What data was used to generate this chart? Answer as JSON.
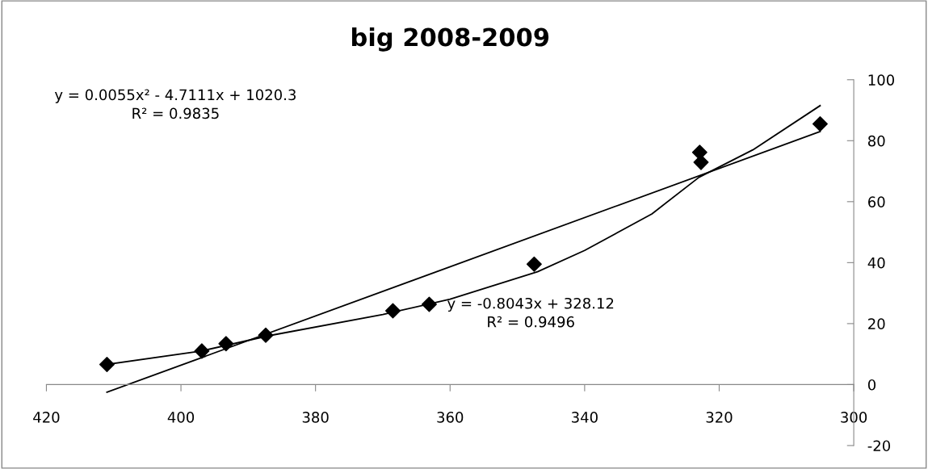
{
  "chart_data": {
    "type": "scatter",
    "title": "big 2008-2009",
    "marker": "diamond",
    "grid": false,
    "legend": false,
    "series": [
      {
        "color": "#000000",
        "x": [
          411.0,
          396.9,
          393.3,
          387.4,
          368.5,
          363.1,
          347.5,
          322.9,
          322.7,
          305.0
        ],
        "values": [
          6.6,
          11.0,
          13.4,
          16.2,
          24.2,
          26.3,
          39.5,
          76.2,
          72.9,
          85.5
        ]
      },
      {
        "type": "line",
        "color": "#000000",
        "marker": "none",
        "x": [
          411,
          305
        ],
        "values": [
          -2.5,
          83
        ]
      },
      {
        "type": "line",
        "color": "#000000",
        "marker": "none",
        "x": [
          411,
          397,
          387,
          370,
          360,
          347,
          340,
          330,
          323,
          315,
          305
        ],
        "values": [
          6.6,
          11,
          16,
          23,
          28,
          37,
          44,
          56,
          68,
          77,
          91.5
        ]
      }
    ],
    "xlim": [
      420,
      300
    ],
    "xticks": [
      420,
      400,
      380,
      360,
      340,
      320,
      300
    ],
    "ylim": [
      -20,
      100
    ],
    "yticks": [
      -20,
      0,
      20,
      40,
      60,
      80,
      100
    ],
    "annotations": [
      "y = 0.0055x² - 4.7111x + 1020.3\nR² = 0.9835",
      "y = -0.8043x + 328.12\nR² = 0.9496"
    ]
  }
}
